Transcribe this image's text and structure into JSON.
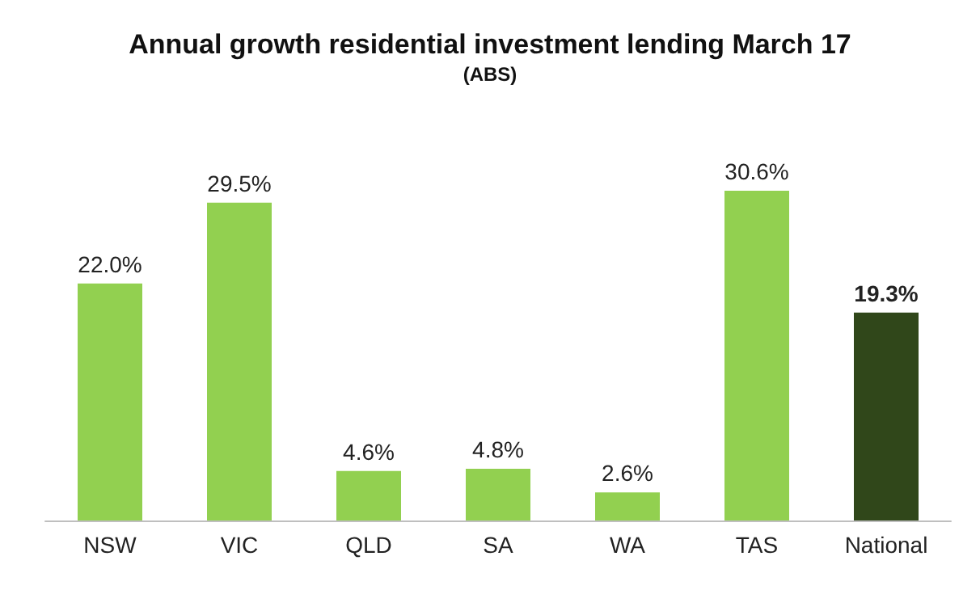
{
  "chart_data": {
    "type": "bar",
    "title": "Annual growth residential investment lending March 17",
    "subtitle": "(ABS)",
    "categories": [
      "NSW",
      "VIC",
      "QLD",
      "SA",
      "WA",
      "TAS",
      "National"
    ],
    "values": [
      22.0,
      29.5,
      4.6,
      4.8,
      2.6,
      30.6,
      19.3
    ],
    "colors": [
      "#92d050",
      "#92d050",
      "#92d050",
      "#92d050",
      "#92d050",
      "#92d050",
      "#30471a"
    ],
    "value_labels": [
      "22.0%",
      "29.5%",
      "4.6%",
      "4.8%",
      "2.6%",
      "30.6%",
      "19.3%"
    ]
  }
}
